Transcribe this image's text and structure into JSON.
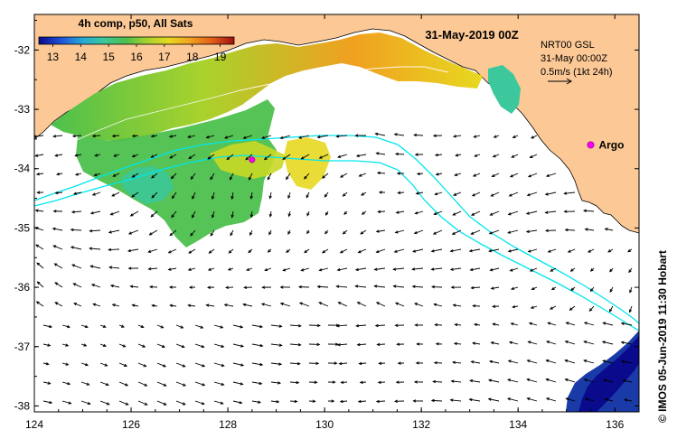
{
  "colorbar": {
    "title": "4h comp, p50, All Sats",
    "ticks": [
      "13",
      "14",
      "15",
      "16",
      "17",
      "18",
      "19"
    ],
    "min": 12.5,
    "max": 19.5,
    "stops": [
      "#0a0a8c",
      "#1f4fd8",
      "#28a8d8",
      "#3cc89c",
      "#4cc04c",
      "#a8d22c",
      "#e8d820",
      "#f0a020",
      "#e25c1a",
      "#a01010"
    ]
  },
  "date_title": "31-May-2019 00Z",
  "vector_legend": {
    "line1": "NRT00 GSL",
    "line2": "31-May 00:00Z",
    "line3": "0.5m/s (1kt 24h)"
  },
  "argo": {
    "label": "Argo",
    "lon": 135.5,
    "lat": -33.6,
    "color": "#ff00ff"
  },
  "second_marker": {
    "lon": 128.5,
    "lat": -33.85
  },
  "axes": {
    "lon_range": [
      124,
      136.5
    ],
    "lat_range": [
      -38.1,
      -31.4
    ],
    "x_ticks": [
      "124",
      "126",
      "128",
      "130",
      "132",
      "134",
      "136"
    ],
    "y_ticks": [
      "-32",
      "-33",
      "-34",
      "-35",
      "-36",
      "-37",
      "-38"
    ]
  },
  "credit": "© IMOS 05-Jun-2019 11:30 Hobart",
  "colors": {
    "land": "#fcc896",
    "contour": "#00e5ee",
    "vector": "#000000"
  }
}
